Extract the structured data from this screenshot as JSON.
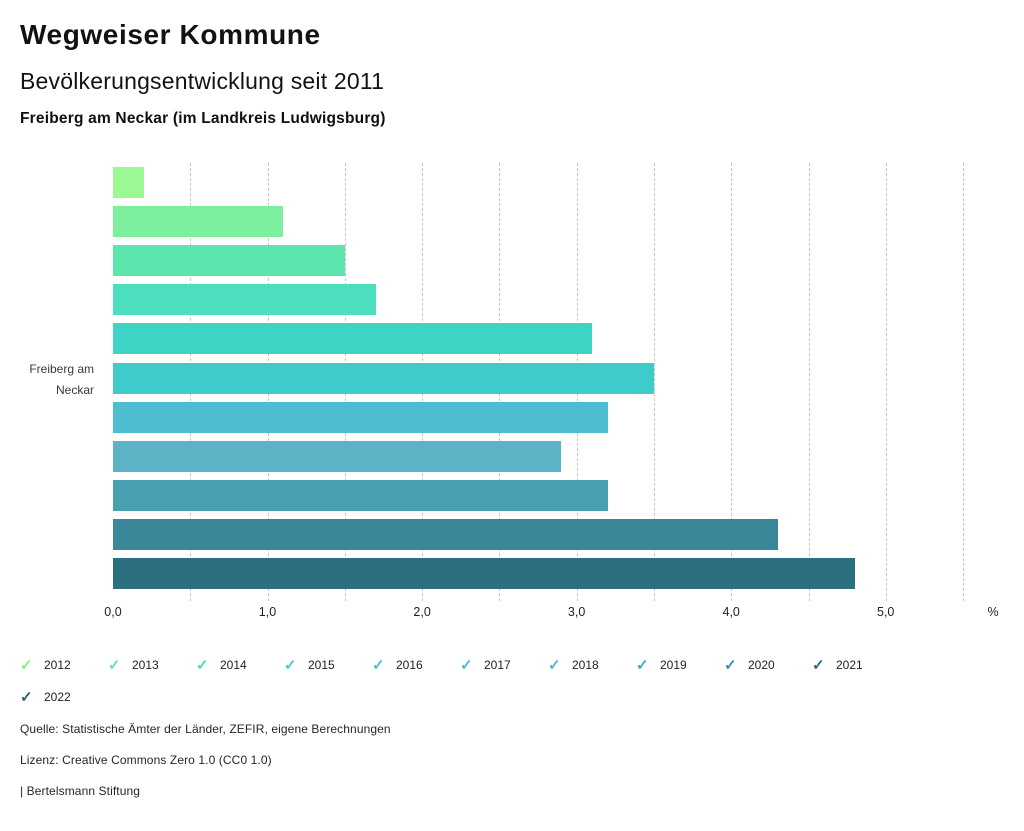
{
  "header": {
    "title": "Wegweiser Kommune",
    "subtitle": "Bevölkerungsentwicklung seit 2011",
    "region_line": "Freiberg am Neckar (im Landkreis Ludwigsburg)"
  },
  "chart_data": {
    "type": "bar",
    "orientation": "horizontal",
    "title": "Bevölkerungsentwicklung seit 2011",
    "region": "Freiberg am Neckar (im Landkreis Ludwigsburg)",
    "row_label_lines": [
      "Freiberg am",
      "Neckar"
    ],
    "categories": [
      "2012",
      "2013",
      "2014",
      "2015",
      "2016",
      "2017",
      "2018",
      "2019",
      "2020",
      "2021",
      "2022"
    ],
    "values": [
      0.2,
      1.1,
      1.5,
      1.7,
      3.1,
      3.5,
      3.2,
      2.9,
      3.2,
      4.3,
      4.8
    ],
    "unit": "%",
    "xlabel": "%",
    "xlim": [
      0,
      5.5
    ],
    "gridline_step": 0.5,
    "grid": true,
    "x_tick_values": [
      0,
      1,
      2,
      3,
      4,
      5
    ],
    "x_tick_labels": [
      "0,0",
      "1,0",
      "2,0",
      "3,0",
      "4,0",
      "5,0"
    ],
    "bar_colors": [
      "#9bf892",
      "#7cee9e",
      "#5ee5ae",
      "#4bdfbd",
      "#3ed4c5",
      "#3fcbca",
      "#4dbdcf",
      "#5db3c6",
      "#49a0b1",
      "#398798",
      "#2b6f80"
    ],
    "legend_position": "bottom"
  },
  "legend": {
    "check_icon": "✓",
    "items": [
      {
        "label": "2012",
        "color": "#88ef88"
      },
      {
        "label": "2013",
        "color": "#5de79c"
      },
      {
        "label": "2014",
        "color": "#44deb9"
      },
      {
        "label": "2015",
        "color": "#3fcfd2"
      },
      {
        "label": "2016",
        "color": "#44c2d8"
      },
      {
        "label": "2017",
        "color": "#49b9d8"
      },
      {
        "label": "2018",
        "color": "#4cb3d3"
      },
      {
        "label": "2019",
        "color": "#45a2c5"
      },
      {
        "label": "2020",
        "color": "#3a8db0"
      },
      {
        "label": "2021",
        "color": "#2c6b8e"
      },
      {
        "label": "2022",
        "color": "#266079"
      }
    ]
  },
  "footer": {
    "source": "Quelle: Statistische Ämter der Länder, ZEFIR, eigene Berechnungen",
    "license": "Lizenz: Creative Commons Zero 1.0 (CC0 1.0)",
    "attribution": "| Bertelsmann Stiftung"
  }
}
